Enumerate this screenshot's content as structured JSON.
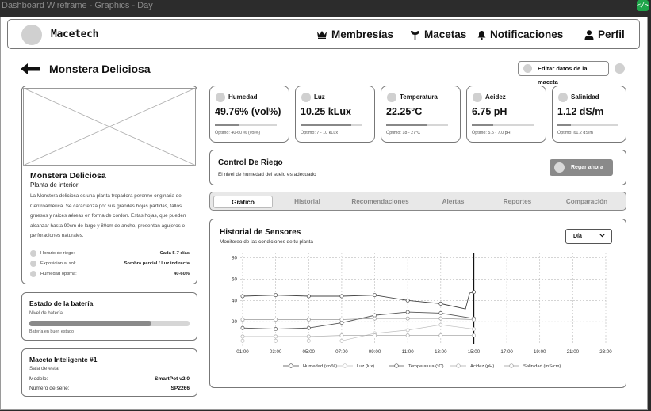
{
  "window": {
    "title": "Dashboard Wireframe - Graphics - Day",
    "code_icon": "</>"
  },
  "header": {
    "brand": "Macetech",
    "nav": [
      {
        "label": "Membresías",
        "icon": "crown-icon"
      },
      {
        "label": "Macetas",
        "icon": "sprout-icon"
      },
      {
        "label": "Notificaciones",
        "icon": "bell-icon"
      },
      {
        "label": "Perfil",
        "icon": "user-icon"
      }
    ]
  },
  "page": {
    "title": "Monstera Deliciosa",
    "edit_label": "Editar datos de la maceta"
  },
  "plant": {
    "name": "Monstera Deliciosa",
    "type": "Planta de interior",
    "description": "La Monstera deliciosa es una planta trepadora perenne originaria de Centroamérica. Se caracteriza por sus grandes hojas partidas, tallos gruesos y raíces aéreas en forma de cordón. Estas hojas, que pueden alcanzar hasta 90cm de largo y 80cm de ancho, presentan agujeros o perforaciones naturales.",
    "props": [
      {
        "label": "Horario de riego:",
        "value": "Cada 5-7 días"
      },
      {
        "label": "Exposición al sol:",
        "value": "Sombra parcial / Luz indirecta"
      },
      {
        "label": "Humedad óptima:",
        "value": "40-60%"
      }
    ]
  },
  "battery": {
    "title": "Estado de la batería",
    "level_label": "Nivel de batería",
    "level": 0.76,
    "status": "Batería en buen estado"
  },
  "device": {
    "title": "Maceta Inteligente #1",
    "room": "Sala de estar",
    "model_label": "Modelo:",
    "model": "SmartPot v2.0",
    "serial_label": "Número de serie:",
    "serial": "SP2266"
  },
  "metrics": [
    {
      "name": "Humedad",
      "value": "49.76% (vol%)",
      "optimal": "Óptimo: 40-60 % (vol%)",
      "level": 0.4
    },
    {
      "name": "Luz",
      "value": "10.25 kLux",
      "optimal": "Óptimo: 7 - 10 kLux",
      "level": 0.82
    },
    {
      "name": "Temperatura",
      "value": "22.25°C",
      "optimal": "Óptimo: 18 - 27°C",
      "level": 0.65
    },
    {
      "name": "Acidez",
      "value": "6.75 pH",
      "optimal": "Óptimo: 5.5 - 7.0 pH",
      "level": 0.34
    },
    {
      "name": "Salinidad",
      "value": "1.12 dS/m",
      "optimal": "Óptimo: ≤1.2 dS/m",
      "level": 0.22
    }
  ],
  "irrigation": {
    "title": "Control De Riego",
    "status": "El nivel de humedad del suelo es adecuado",
    "button": "Regar ahora"
  },
  "tabs": {
    "items": [
      "Gráfico",
      "Historial",
      "Recomendaciones",
      "Alertas",
      "Reportes",
      "Comparación"
    ],
    "active": 0
  },
  "history": {
    "title": "Historial de Sensores",
    "subtitle": "Monitoreo de las condiciones de tu planta",
    "range": "Día"
  },
  "chart_data": {
    "type": "line",
    "x": [
      "01:00",
      "03:00",
      "05:00",
      "07:00",
      "09:00",
      "11:00",
      "13:00",
      "15:00",
      "17:00",
      "19:00",
      "21:00",
      "23:00"
    ],
    "ylim": [
      0,
      85
    ],
    "yticks": [
      20,
      40,
      60,
      80
    ],
    "grid": true,
    "legend": "bottom",
    "now_marker": "15:00",
    "series": [
      {
        "name": "Humedad (vol%)",
        "color": "#444444",
        "points": [
          [
            "01:00",
            44
          ],
          [
            "03:00",
            45
          ],
          [
            "05:00",
            44
          ],
          [
            "07:00",
            44
          ],
          [
            "09:00",
            45
          ],
          [
            "11:00",
            40
          ],
          [
            "13:00",
            37
          ],
          [
            "14:30",
            32
          ],
          [
            "14:45",
            47
          ],
          [
            "15:00",
            48
          ]
        ]
      },
      {
        "name": "Luz (lux)",
        "color": "#bbbbbb",
        "points": [
          [
            "01:00",
            2
          ],
          [
            "03:00",
            2
          ],
          [
            "05:00",
            2
          ],
          [
            "07:00",
            2
          ],
          [
            "09:00",
            9
          ],
          [
            "11:00",
            12
          ],
          [
            "13:00",
            17
          ],
          [
            "15:00",
            13
          ]
        ]
      },
      {
        "name": "Temperatura (°C)",
        "color": "#555555",
        "points": [
          [
            "01:00",
            14
          ],
          [
            "03:00",
            13
          ],
          [
            "05:00",
            14
          ],
          [
            "07:00",
            19
          ],
          [
            "09:00",
            26
          ],
          [
            "11:00",
            29
          ],
          [
            "13:00",
            28
          ],
          [
            "15:00",
            23
          ]
        ]
      },
      {
        "name": "Acidez (pH)",
        "color": "#aaaaaa",
        "points": [
          [
            "01:00",
            6
          ],
          [
            "03:00",
            6
          ],
          [
            "05:00",
            6
          ],
          [
            "07:00",
            7
          ],
          [
            "09:00",
            7
          ],
          [
            "11:00",
            7
          ],
          [
            "13:00",
            7
          ],
          [
            "15:00",
            7
          ]
        ]
      },
      {
        "name": "Salinidad (mS/cm)",
        "color": "#999999",
        "points": [
          [
            "01:00",
            22
          ],
          [
            "03:00",
            22
          ],
          [
            "05:00",
            22
          ],
          [
            "07:00",
            22
          ],
          [
            "09:00",
            23
          ],
          [
            "11:00",
            23
          ],
          [
            "13:00",
            23
          ],
          [
            "15:00",
            22
          ]
        ]
      }
    ]
  }
}
